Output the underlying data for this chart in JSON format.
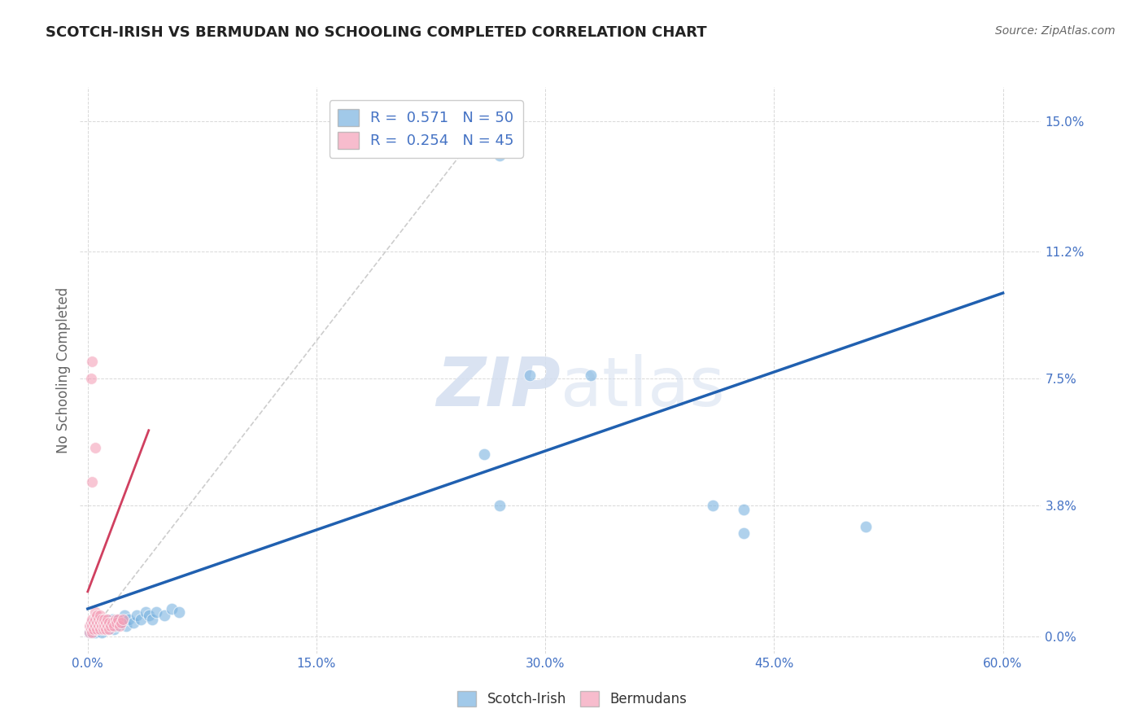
{
  "title": "SCOTCH-IRISH VS BERMUDAN NO SCHOOLING COMPLETED CORRELATION CHART",
  "source": "Source: ZipAtlas.com",
  "ylabel": "No Schooling Completed",
  "x_tick_vals": [
    0.0,
    0.15,
    0.3,
    0.45,
    0.6
  ],
  "y_tick_vals": [
    0.0,
    0.038,
    0.075,
    0.112,
    0.15
  ],
  "y_tick_labels": [
    "0.0%",
    "3.8%",
    "7.5%",
    "11.2%",
    "15.0%"
  ],
  "xlim": [
    -0.005,
    0.625
  ],
  "ylim": [
    -0.005,
    0.16
  ],
  "r_blue": 0.571,
  "n_blue": 50,
  "r_pink": 0.254,
  "n_pink": 45,
  "blue_scatter": [
    [
      0.001,
      0.001
    ],
    [
      0.002,
      0.002
    ],
    [
      0.002,
      0.003
    ],
    [
      0.003,
      0.001
    ],
    [
      0.003,
      0.004
    ],
    [
      0.004,
      0.002
    ],
    [
      0.005,
      0.003
    ],
    [
      0.005,
      0.001
    ],
    [
      0.006,
      0.004
    ],
    [
      0.006,
      0.002
    ],
    [
      0.007,
      0.003
    ],
    [
      0.007,
      0.005
    ],
    [
      0.008,
      0.002
    ],
    [
      0.008,
      0.004
    ],
    [
      0.009,
      0.003
    ],
    [
      0.009,
      0.001
    ],
    [
      0.01,
      0.004
    ],
    [
      0.011,
      0.003
    ],
    [
      0.012,
      0.005
    ],
    [
      0.013,
      0.002
    ],
    [
      0.014,
      0.004
    ],
    [
      0.015,
      0.003
    ],
    [
      0.016,
      0.005
    ],
    [
      0.017,
      0.002
    ],
    [
      0.018,
      0.004
    ],
    [
      0.019,
      0.003
    ],
    [
      0.02,
      0.005
    ],
    [
      0.022,
      0.004
    ],
    [
      0.024,
      0.006
    ],
    [
      0.025,
      0.003
    ],
    [
      0.027,
      0.005
    ],
    [
      0.03,
      0.004
    ],
    [
      0.032,
      0.006
    ],
    [
      0.035,
      0.005
    ],
    [
      0.038,
      0.007
    ],
    [
      0.04,
      0.006
    ],
    [
      0.042,
      0.005
    ],
    [
      0.045,
      0.007
    ],
    [
      0.05,
      0.006
    ],
    [
      0.055,
      0.008
    ],
    [
      0.06,
      0.007
    ],
    [
      0.27,
      0.14
    ],
    [
      0.29,
      0.076
    ],
    [
      0.33,
      0.076
    ],
    [
      0.26,
      0.053
    ],
    [
      0.27,
      0.038
    ],
    [
      0.41,
      0.038
    ],
    [
      0.43,
      0.037
    ],
    [
      0.43,
      0.03
    ],
    [
      0.51,
      0.032
    ]
  ],
  "pink_scatter": [
    [
      0.001,
      0.001
    ],
    [
      0.001,
      0.003
    ],
    [
      0.002,
      0.002
    ],
    [
      0.002,
      0.004
    ],
    [
      0.003,
      0.001
    ],
    [
      0.003,
      0.003
    ],
    [
      0.003,
      0.005
    ],
    [
      0.004,
      0.002
    ],
    [
      0.004,
      0.004
    ],
    [
      0.005,
      0.003
    ],
    [
      0.005,
      0.005
    ],
    [
      0.005,
      0.007
    ],
    [
      0.006,
      0.002
    ],
    [
      0.006,
      0.004
    ],
    [
      0.006,
      0.006
    ],
    [
      0.007,
      0.003
    ],
    [
      0.007,
      0.005
    ],
    [
      0.008,
      0.002
    ],
    [
      0.008,
      0.004
    ],
    [
      0.008,
      0.006
    ],
    [
      0.009,
      0.003
    ],
    [
      0.009,
      0.005
    ],
    [
      0.01,
      0.002
    ],
    [
      0.01,
      0.004
    ],
    [
      0.011,
      0.003
    ],
    [
      0.011,
      0.005
    ],
    [
      0.012,
      0.002
    ],
    [
      0.012,
      0.004
    ],
    [
      0.013,
      0.003
    ],
    [
      0.013,
      0.005
    ],
    [
      0.014,
      0.002
    ],
    [
      0.014,
      0.004
    ],
    [
      0.015,
      0.003
    ],
    [
      0.016,
      0.004
    ],
    [
      0.017,
      0.003
    ],
    [
      0.018,
      0.005
    ],
    [
      0.019,
      0.004
    ],
    [
      0.02,
      0.005
    ],
    [
      0.021,
      0.003
    ],
    [
      0.022,
      0.004
    ],
    [
      0.023,
      0.005
    ],
    [
      0.003,
      0.08
    ],
    [
      0.005,
      0.055
    ],
    [
      0.003,
      0.045
    ],
    [
      0.002,
      0.075
    ]
  ],
  "blue_line_x": [
    0.0,
    0.6
  ],
  "blue_line_y": [
    0.008,
    0.1
  ],
  "pink_line_x": [
    0.0,
    0.04
  ],
  "pink_line_y": [
    0.013,
    0.06
  ],
  "blue_color": "#7ab3e0",
  "pink_color": "#f4a0b8",
  "blue_line_color": "#2060b0",
  "pink_line_color": "#d04060",
  "diagonal_color": "#c8c8c8",
  "bg_color": "#ffffff",
  "grid_color": "#d8d8d8",
  "title_color": "#222222",
  "axis_tick_color": "#4472c4",
  "ylabel_color": "#666666",
  "watermark_color": "#d4dff0",
  "legend_label_color": "#4472c4"
}
